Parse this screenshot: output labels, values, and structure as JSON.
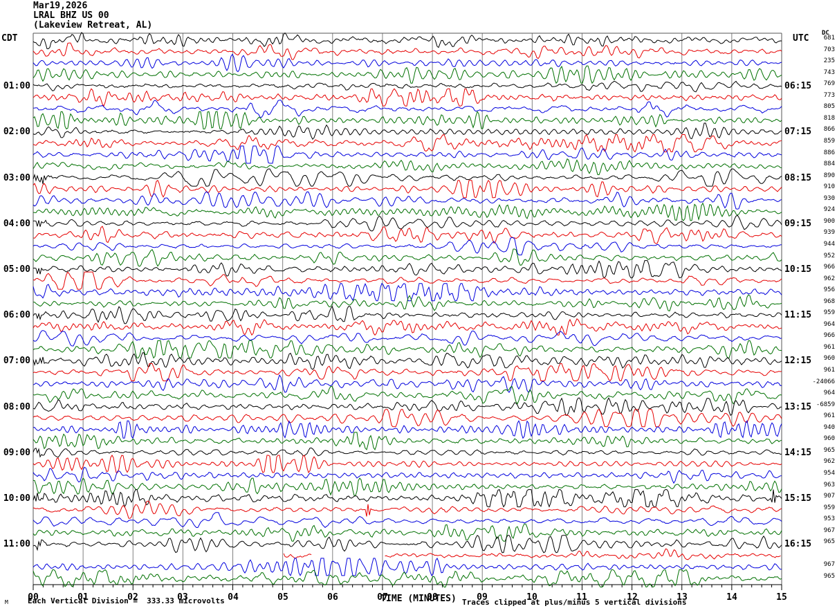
{
  "header": {
    "date": "Mar19,2026",
    "station": "LRAL BHZ US 00",
    "location": "(Lakeview Retreat, AL)"
  },
  "axes": {
    "left_corner_label": "CDT",
    "right_corner_label": "UTC",
    "dc_header": "DC",
    "x_axis_title": "TIME (MINUTES)"
  },
  "footer": {
    "left_note": "Each Vertical Division =  333.33 microvolts",
    "right_note": "Traces clipped at plus/minus 5 vertical divisions",
    "corner_mark": "M"
  },
  "colors": {
    "black": "#000000",
    "red": "#e60000",
    "blue": "#0000dd",
    "green": "#007000",
    "grid": "#808080",
    "frame": "#555555",
    "axis": "#000000"
  },
  "chart_data": {
    "type": "line",
    "subtype": "seismogram-helicorder",
    "title": "Mar19,2026 LRAL BHZ US 00 (Lakeview Retreat, AL)",
    "xlabel": "TIME (MINUTES)",
    "x_range_minutes": [
      0,
      15
    ],
    "x_major_ticks": [
      "00",
      "01",
      "02",
      "03",
      "04",
      "05",
      "06",
      "07",
      "08",
      "09",
      "10",
      "11",
      "12",
      "13",
      "14",
      "15"
    ],
    "minor_ticks_per_minute": 5,
    "minutes_per_row": 15,
    "rows_per_hour": 4,
    "left_axis": {
      "label": "CDT",
      "hour_labels": [
        "01:00",
        "02:00",
        "03:00",
        "04:00",
        "05:00",
        "06:00",
        "07:00",
        "08:00",
        "09:00",
        "10:00",
        "11:00"
      ]
    },
    "right_axis": {
      "label": "UTC",
      "hour_labels": [
        "06:15",
        "07:15",
        "08:15",
        "09:15",
        "10:15",
        "11:15",
        "12:15",
        "13:15",
        "14:15",
        "15:15",
        "16:15"
      ]
    },
    "rows": [
      {
        "t": "00:00",
        "color": "black",
        "dc": "681"
      },
      {
        "t": "00:15",
        "color": "red",
        "dc": "703"
      },
      {
        "t": "00:30",
        "color": "blue",
        "dc": "235"
      },
      {
        "t": "00:45",
        "color": "green",
        "dc": "743"
      },
      {
        "t": "01:00",
        "color": "black",
        "dc": "769"
      },
      {
        "t": "01:15",
        "color": "red",
        "dc": "773"
      },
      {
        "t": "01:30",
        "color": "blue",
        "dc": "805"
      },
      {
        "t": "01:45",
        "color": "green",
        "dc": "818"
      },
      {
        "t": "02:00",
        "color": "black",
        "dc": "866"
      },
      {
        "t": "02:15",
        "color": "red",
        "dc": "859"
      },
      {
        "t": "02:30",
        "color": "blue",
        "dc": "886"
      },
      {
        "t": "02:45",
        "color": "green",
        "dc": "884"
      },
      {
        "t": "03:00",
        "color": "black",
        "dc": "890",
        "events": [
          {
            "m": 0.15,
            "amp": 6,
            "w": 0.18
          }
        ]
      },
      {
        "t": "03:15",
        "color": "red",
        "dc": "910"
      },
      {
        "t": "03:30",
        "color": "blue",
        "dc": "930"
      },
      {
        "t": "03:45",
        "color": "green",
        "dc": "924"
      },
      {
        "t": "04:00",
        "color": "black",
        "dc": "900",
        "events": [
          {
            "m": 0.1,
            "amp": 5,
            "w": 0.15
          }
        ]
      },
      {
        "t": "04:15",
        "color": "red",
        "dc": "939"
      },
      {
        "t": "04:30",
        "color": "blue",
        "dc": "944"
      },
      {
        "t": "04:45",
        "color": "green",
        "dc": "952"
      },
      {
        "t": "05:00",
        "color": "black",
        "dc": "966",
        "events": [
          {
            "m": 0.1,
            "amp": 5,
            "w": 0.12
          }
        ]
      },
      {
        "t": "05:15",
        "color": "red",
        "dc": "962"
      },
      {
        "t": "05:30",
        "color": "blue",
        "dc": "956"
      },
      {
        "t": "05:45",
        "color": "green",
        "dc": "968"
      },
      {
        "t": "06:00",
        "color": "black",
        "dc": "959",
        "events": [
          {
            "m": 0.1,
            "amp": 4,
            "w": 0.12
          }
        ]
      },
      {
        "t": "06:15",
        "color": "red",
        "dc": "964"
      },
      {
        "t": "06:30",
        "color": "blue",
        "dc": "966"
      },
      {
        "t": "06:45",
        "color": "green",
        "dc": "961"
      },
      {
        "t": "07:00",
        "color": "black",
        "dc": "960",
        "events": [
          {
            "m": 0.12,
            "amp": 6,
            "w": 0.15
          }
        ]
      },
      {
        "t": "07:15",
        "color": "red",
        "dc": "961"
      },
      {
        "t": "07:30",
        "color": "blue",
        "dc": "-24066"
      },
      {
        "t": "07:45",
        "color": "green",
        "dc": "964"
      },
      {
        "t": "08:00",
        "color": "black",
        "dc": "-6859"
      },
      {
        "t": "08:15",
        "color": "red",
        "dc": "961"
      },
      {
        "t": "08:30",
        "color": "blue",
        "dc": "940"
      },
      {
        "t": "08:45",
        "color": "green",
        "dc": "960"
      },
      {
        "t": "09:00",
        "color": "black",
        "dc": "965",
        "events": [
          {
            "m": 0.1,
            "amp": 4,
            "w": 0.12
          }
        ]
      },
      {
        "t": "09:15",
        "color": "red",
        "dc": "962"
      },
      {
        "t": "09:30",
        "color": "blue",
        "dc": "954"
      },
      {
        "t": "09:45",
        "color": "green",
        "dc": "963"
      },
      {
        "t": "10:00",
        "color": "black",
        "dc": "907",
        "events": [
          {
            "m": 0.08,
            "amp": 6,
            "w": 0.12
          },
          {
            "m": 14.82,
            "amp": 13,
            "w": 0.06
          }
        ]
      },
      {
        "t": "10:15",
        "color": "red",
        "dc": "959",
        "events": [
          {
            "m": 6.7,
            "amp": 10,
            "w": 0.06
          }
        ]
      },
      {
        "t": "10:30",
        "color": "blue",
        "dc": "953"
      },
      {
        "t": "10:45",
        "color": "green",
        "dc": "967"
      },
      {
        "t": "11:00",
        "color": "black",
        "dc": "965",
        "events": [
          {
            "m": 0.1,
            "amp": 5,
            "w": 0.12
          }
        ]
      },
      {
        "t": "11:15",
        "color": "red",
        "dc": "",
        "segments": [
          [
            5.02,
            5.6
          ],
          [
            7.05,
            15
          ]
        ],
        "amp_scale": 0.8
      },
      {
        "t": "11:30",
        "color": "blue",
        "dc": "967"
      },
      {
        "t": "11:45",
        "color": "green",
        "dc": "965"
      }
    ],
    "notes": [
      "Each Vertical Division =  333.33 microvolts",
      "Traces clipped at plus/minus 5 vertical divisions"
    ]
  }
}
